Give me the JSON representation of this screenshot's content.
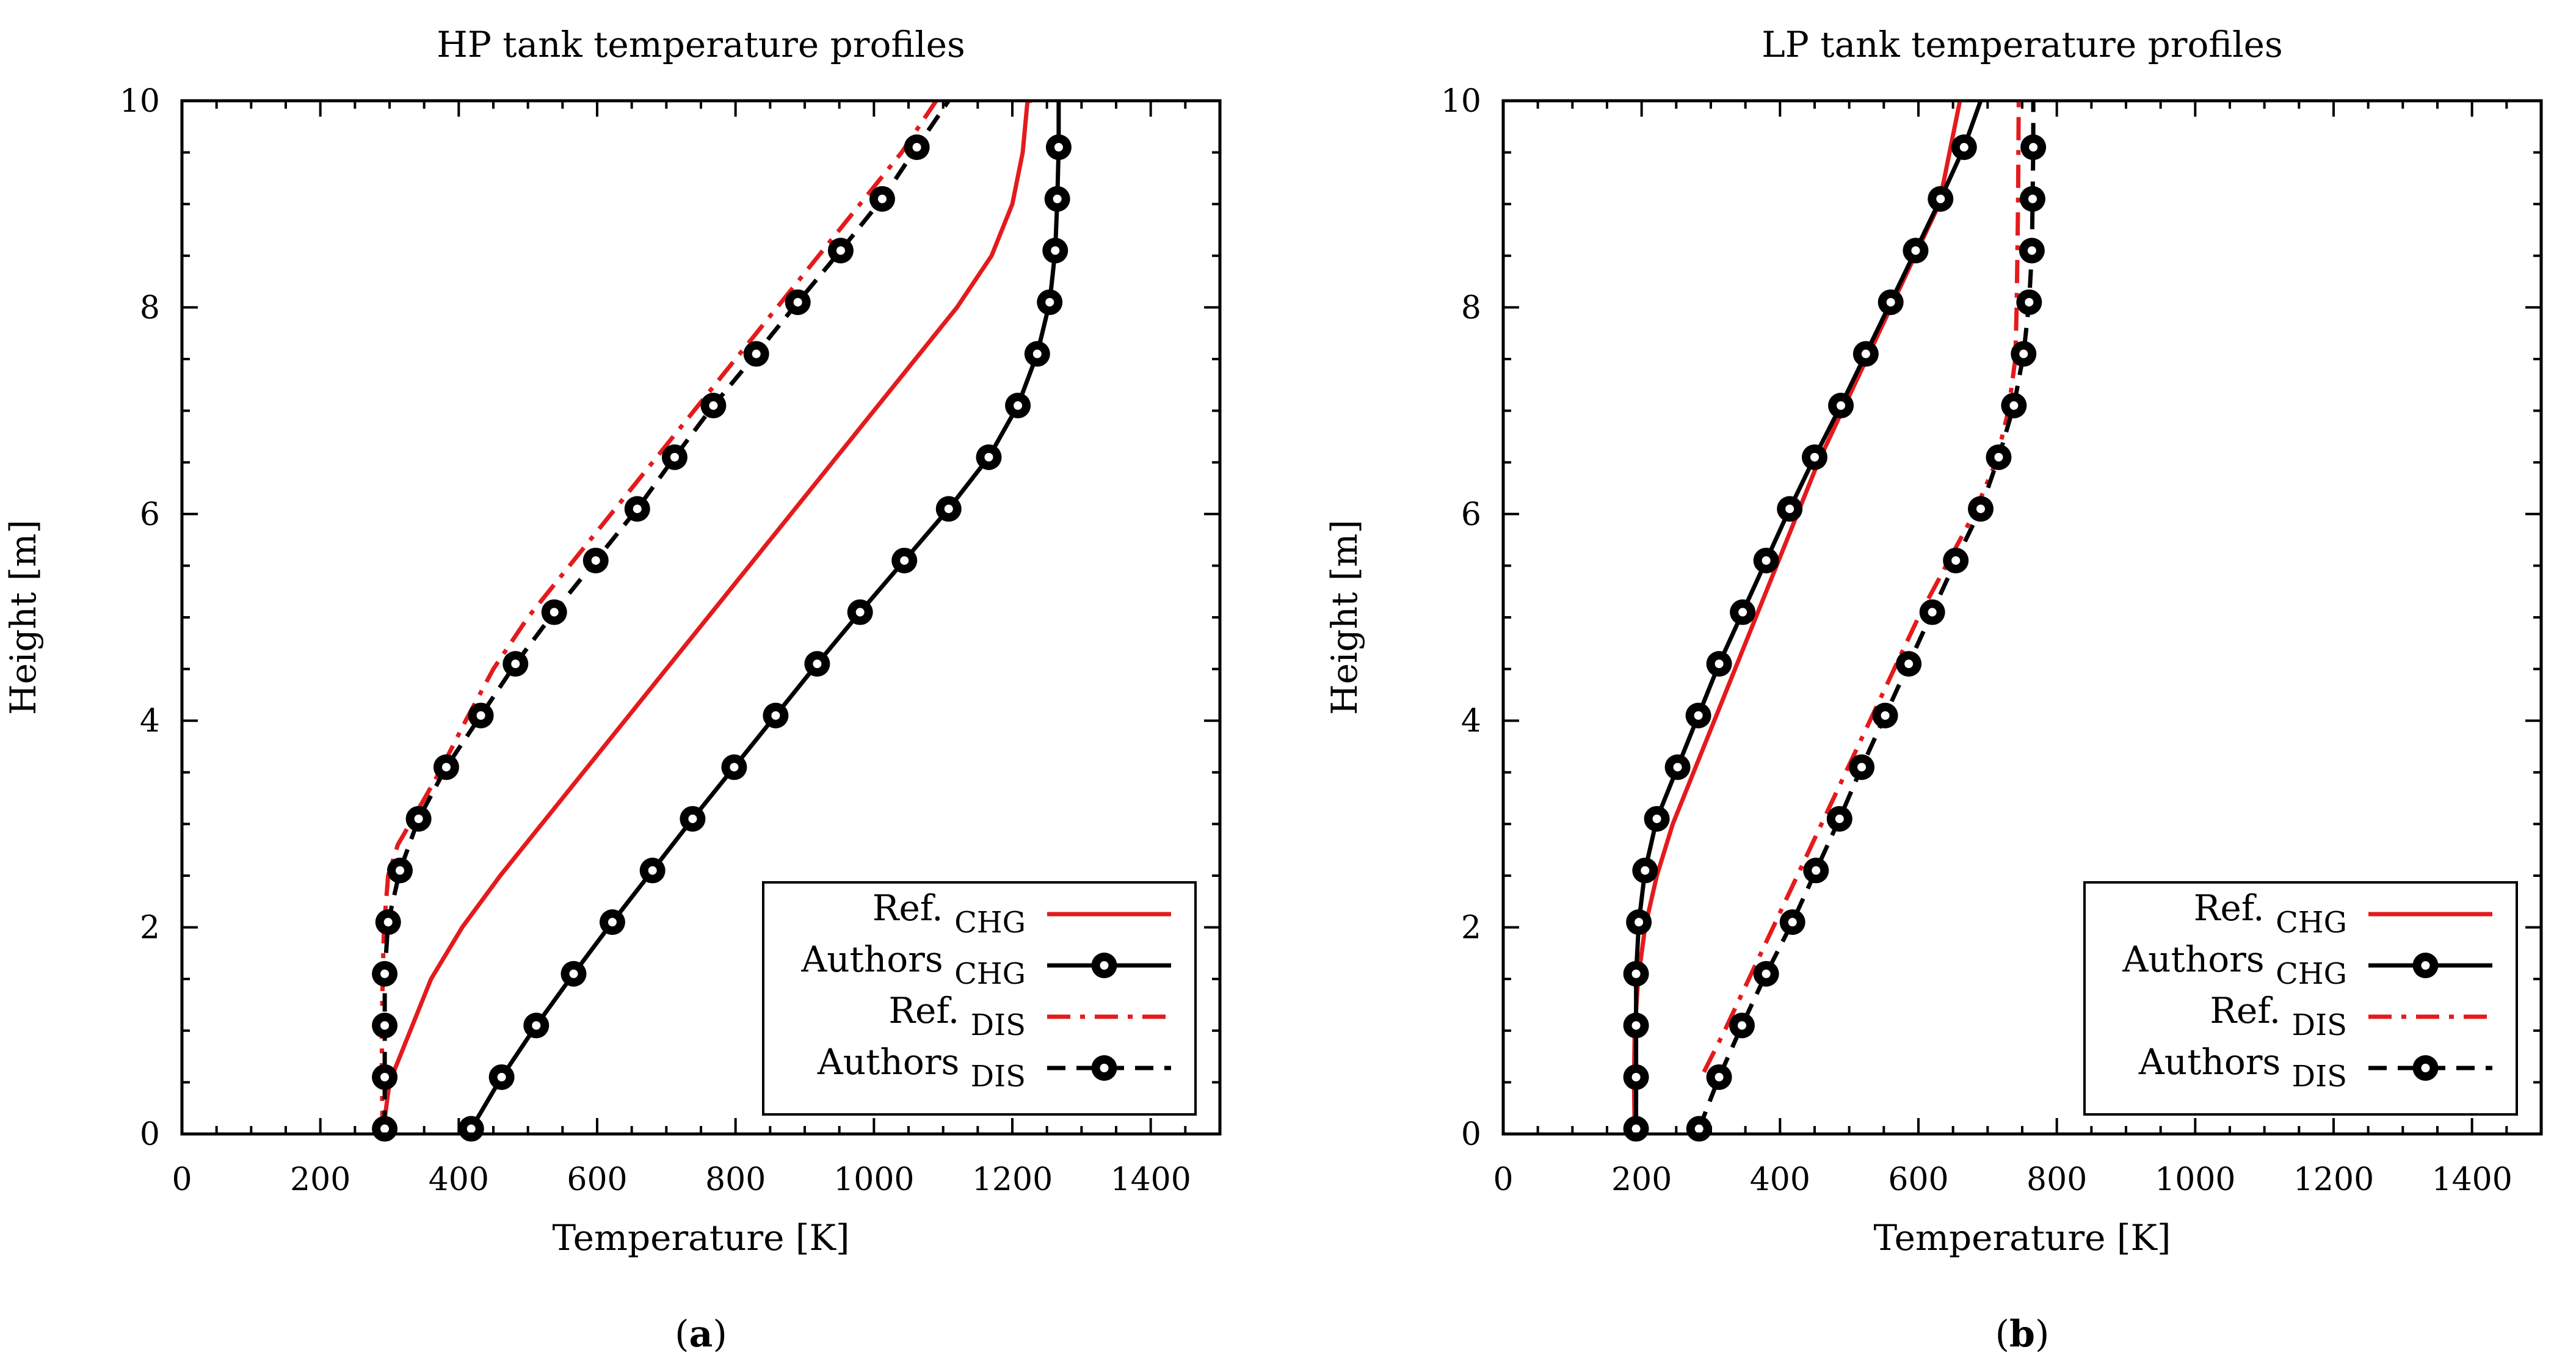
{
  "colors": {
    "ref": "#e41a1c",
    "authors": "#000000"
  },
  "chart_data": [
    {
      "type": "line",
      "title": "HP tank temperature profiles",
      "xlabel": "Temperature [K]",
      "ylabel": "Height [m]",
      "xlim": [
        0,
        1500
      ],
      "ylim": [
        0,
        10
      ],
      "xticks": [
        0,
        200,
        400,
        600,
        800,
        1000,
        1200,
        1400
      ],
      "yticks": [
        0,
        2,
        4,
        6,
        8,
        10
      ],
      "grid": false,
      "legend_position": "bottom-right",
      "panel_label": "a",
      "series": [
        {
          "name": "Ref.",
          "sub": "CHG",
          "style": "ref-solid",
          "x": [
            290,
            300,
            330,
            360,
            405,
            460,
            520,
            580,
            640,
            700,
            760,
            820,
            880,
            940,
            1000,
            1060,
            1120,
            1170,
            1200,
            1215,
            1222,
            1225,
            1226,
            1228
          ],
          "y": [
            0,
            0.5,
            1.0,
            1.5,
            2.0,
            2.5,
            3.0,
            3.5,
            4.0,
            4.5,
            5.0,
            5.5,
            6.0,
            6.5,
            7.0,
            7.5,
            8.0,
            8.5,
            9.0,
            9.5,
            10.0,
            9.999,
            10.0,
            10.0
          ]
        },
        {
          "name": "Authors",
          "sub": "CHG",
          "style": "authors-solid",
          "x": [
            418,
            462,
            512,
            566,
            622,
            680,
            738,
            798,
            858,
            918,
            980,
            1044,
            1108,
            1166,
            1208,
            1236,
            1254,
            1262,
            1265,
            1267,
            1267
          ],
          "y": [
            0.05,
            0.55,
            1.05,
            1.55,
            2.05,
            2.55,
            3.05,
            3.55,
            4.05,
            4.55,
            5.05,
            5.55,
            6.05,
            6.55,
            7.05,
            7.55,
            8.05,
            8.55,
            9.05,
            9.55,
            10.0
          ]
        },
        {
          "name": "Ref.",
          "sub": "DIS",
          "style": "ref-dashdot",
          "x": [
            290,
            289,
            289,
            290,
            292,
            298,
            312,
            338,
            372,
            410,
            450,
            500,
            560,
            620,
            680,
            740,
            800,
            860,
            920,
            980,
            1040,
            1090
          ],
          "y": [
            0,
            0.5,
            1.0,
            1.5,
            2.0,
            2.5,
            2.8,
            3.1,
            3.5,
            4.0,
            4.5,
            5.0,
            5.5,
            6.0,
            6.5,
            7.0,
            7.5,
            8.0,
            8.5,
            9.0,
            9.5,
            10.0
          ]
        },
        {
          "name": "Authors",
          "sub": "DIS",
          "style": "authors-dash",
          "x": [
            293,
            293,
            293,
            293,
            298,
            315,
            342,
            382,
            432,
            482,
            538,
            598,
            658,
            712,
            768,
            830,
            890,
            952,
            1012,
            1062,
            1108
          ],
          "y": [
            0.05,
            0.55,
            1.05,
            1.55,
            2.05,
            2.55,
            3.05,
            3.55,
            4.05,
            4.55,
            5.05,
            5.55,
            6.05,
            6.55,
            7.05,
            7.55,
            8.05,
            8.55,
            9.05,
            9.55,
            10.0
          ]
        }
      ]
    },
    {
      "type": "line",
      "title": "LP tank temperature profiles",
      "xlabel": "Temperature [K]",
      "ylabel": "Height [m]",
      "xlim": [
        0,
        1500
      ],
      "ylim": [
        0,
        10
      ],
      "xticks": [
        0,
        200,
        400,
        600,
        800,
        1000,
        1200,
        1400
      ],
      "yticks": [
        0,
        2,
        4,
        6,
        8,
        10
      ],
      "grid": false,
      "legend_position": "bottom-right",
      "panel_label": "b",
      "series": [
        {
          "name": "Ref.",
          "sub": "CHG",
          "style": "ref-solid",
          "x": [
            190,
            189,
            190,
            195,
            205,
            222,
            245,
            275,
            305,
            335,
            365,
            395,
            425,
            455,
            490,
            525,
            560,
            595,
            630,
            660
          ],
          "y": [
            0,
            0.5,
            1.0,
            1.5,
            2.0,
            2.5,
            3.0,
            3.5,
            4.0,
            4.5,
            5.0,
            5.5,
            6.0,
            6.5,
            7.0,
            7.5,
            8.0,
            8.5,
            9.0,
            10.0
          ]
        },
        {
          "name": "Authors",
          "sub": "CHG",
          "style": "authors-solid",
          "x": [
            192,
            192,
            192,
            192,
            196,
            205,
            222,
            252,
            282,
            312,
            346,
            380,
            414,
            450,
            488,
            524,
            560,
            596,
            632,
            666,
            690
          ],
          "y": [
            0.05,
            0.55,
            1.05,
            1.55,
            2.05,
            2.55,
            3.05,
            3.55,
            4.05,
            4.55,
            5.05,
            5.55,
            6.05,
            6.55,
            7.05,
            7.55,
            8.05,
            8.55,
            9.05,
            9.55,
            10.0
          ]
        },
        {
          "name": "Ref.",
          "sub": "DIS",
          "style": "ref-dashdot",
          "x": [
            290,
            320,
            355,
            390,
            425,
            460,
            495,
            530,
            565,
            600,
            640,
            680,
            712,
            730,
            740,
            742,
            744,
            745
          ],
          "y": [
            0.6,
            1.0,
            1.5,
            2.0,
            2.5,
            3.0,
            3.5,
            4.0,
            4.5,
            5.0,
            5.5,
            6.0,
            6.5,
            7.0,
            7.5,
            8.0,
            9.0,
            10.0
          ]
        },
        {
          "name": "Authors",
          "sub": "DIS",
          "style": "authors-dash",
          "x": [
            283,
            312,
            345,
            380,
            418,
            452,
            486,
            518,
            552,
            586,
            620,
            654,
            690,
            716,
            738,
            752,
            760,
            764,
            765,
            766,
            766
          ],
          "y": [
            0.05,
            0.55,
            1.05,
            1.55,
            2.05,
            2.55,
            3.05,
            3.55,
            4.05,
            4.55,
            5.05,
            5.55,
            6.05,
            6.55,
            7.05,
            7.55,
            8.05,
            8.55,
            9.05,
            9.55,
            10.0
          ]
        }
      ]
    }
  ]
}
